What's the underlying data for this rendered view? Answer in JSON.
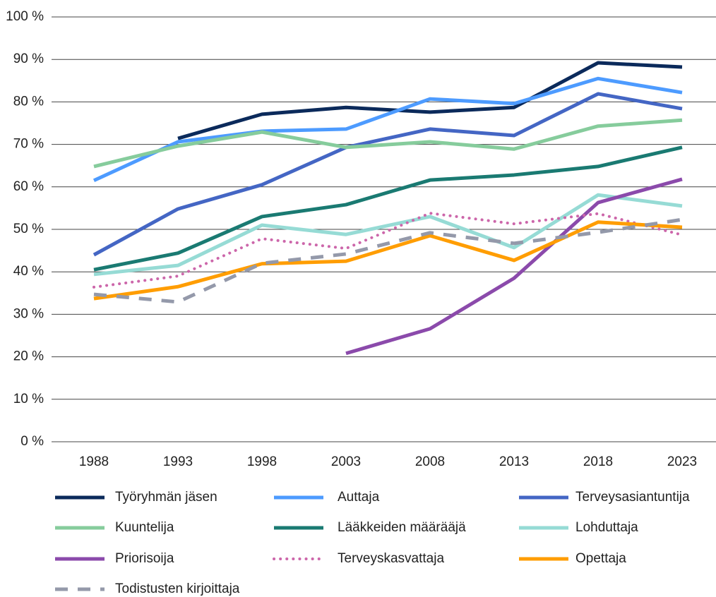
{
  "chart_data": {
    "type": "line",
    "categories": [
      "1988",
      "1993",
      "1998",
      "2003",
      "2008",
      "2013",
      "2018",
      "2023"
    ],
    "ylim": [
      0,
      100
    ],
    "yticks": [
      {
        "value": 0,
        "label": "0 %"
      },
      {
        "value": 10,
        "label": "10 %"
      },
      {
        "value": 20,
        "label": "20 %"
      },
      {
        "value": 30,
        "label": "30 %"
      },
      {
        "value": 40,
        "label": "40 %"
      },
      {
        "value": 50,
        "label": "50 %"
      },
      {
        "value": 60,
        "label": "60 %"
      },
      {
        "value": 70,
        "label": "70 %"
      },
      {
        "value": 80,
        "label": "80 %"
      },
      {
        "value": 90,
        "label": "90 %"
      },
      {
        "value": 100,
        "label": "100 %"
      }
    ],
    "grid": true,
    "legend": "bottom",
    "series": [
      {
        "name": "Työryhmän jäsen",
        "color": "#0b2a5b",
        "style": "solid",
        "values": [
          null,
          71.4,
          77.1,
          78.7,
          77.6,
          78.7,
          89.2,
          88.2
        ]
      },
      {
        "name": "Auttaja",
        "color": "#4d9bff",
        "style": "solid",
        "values": [
          61.5,
          70.6,
          73.1,
          73.6,
          80.7,
          79.6,
          85.5,
          82.2
        ]
      },
      {
        "name": "Terveysasiantuntija",
        "color": "#4466c4",
        "style": "solid",
        "values": [
          44.0,
          54.8,
          60.5,
          69.3,
          73.6,
          72.1,
          81.9,
          78.4
        ]
      },
      {
        "name": "Kuuntelija",
        "color": "#86cc9c",
        "style": "solid",
        "values": [
          64.8,
          69.6,
          72.9,
          69.3,
          70.6,
          68.9,
          74.3,
          75.7
        ]
      },
      {
        "name": "Lääkkeiden määrääjä",
        "color": "#1a7a72",
        "style": "solid",
        "values": [
          40.5,
          44.4,
          53.0,
          55.8,
          61.6,
          62.8,
          64.8,
          69.3
        ]
      },
      {
        "name": "Lohduttaja",
        "color": "#96dbd5",
        "style": "solid",
        "values": [
          39.4,
          41.5,
          51.0,
          48.8,
          53.0,
          45.7,
          58.1,
          55.5
        ]
      },
      {
        "name": "Priorisoija",
        "color": "#8b4aab",
        "style": "solid",
        "values": [
          null,
          null,
          null,
          20.8,
          26.6,
          38.5,
          56.3,
          61.8
        ]
      },
      {
        "name": "Terveyskasvattaja",
        "color": "#cc66aa",
        "style": "dotted",
        "values": [
          36.4,
          39.0,
          47.8,
          45.5,
          53.8,
          51.3,
          53.7,
          48.7
        ]
      },
      {
        "name": "Opettaja",
        "color": "#ff9d00",
        "style": "solid",
        "values": [
          33.7,
          36.5,
          41.9,
          42.5,
          48.5,
          42.7,
          51.7,
          50.5
        ]
      },
      {
        "name": "Todistusten kirjoittaja",
        "color": "#9499aa",
        "style": "dashed",
        "values": [
          34.7,
          32.9,
          42.0,
          44.2,
          49.2,
          46.7,
          49.3,
          52.3
        ]
      }
    ]
  }
}
